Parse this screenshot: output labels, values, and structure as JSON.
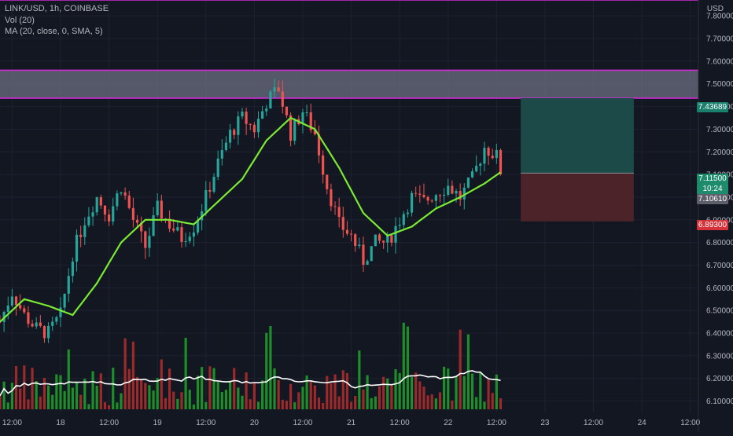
{
  "legend": {
    "symbol": "LINK/USD, 1h, COINBASE",
    "volume": "Vol (20)",
    "ma": "MA (20, close, 0, SMA, 5)"
  },
  "currency_label": "USD",
  "colors": {
    "background": "#131722",
    "up": "#26a69a",
    "down": "#ef5350",
    "vol_up": "#1e8e2a",
    "vol_down": "#9c2a2a",
    "ma_line": "#7bea33",
    "vol_ma": "#ffffff",
    "zone_line": "#d12bd6",
    "zone_fill": "#6b6f80",
    "profit_zone": "#1b4a48",
    "loss_zone": "#4b2329",
    "grid": "#1e2230",
    "axis_text": "#b2b5be"
  },
  "price_tags": {
    "resistance": "7.43689",
    "last_price": "7.11500",
    "countdown": "10:24",
    "entry": "7.10610",
    "stop": "6.89300"
  },
  "chart_data": {
    "type": "candlestick",
    "title": "LINK/USD, 1h, COINBASE",
    "xlabel": "",
    "ylabel": "USD",
    "ylim": [
      6.05,
      7.87
    ],
    "y_ticks": [
      "6.10000",
      "6.20000",
      "6.30000",
      "6.40000",
      "6.50000",
      "6.60000",
      "6.70000",
      "6.80000",
      "6.90000",
      "7.00000",
      "7.10000",
      "7.20000",
      "7.30000",
      "7.40000",
      "7.50000",
      "7.60000",
      "7.70000",
      "7.80000"
    ],
    "x_ticks": [
      "12:00",
      "18",
      "12:00",
      "19",
      "12:00",
      "20",
      "12:00",
      "21",
      "12:00",
      "22",
      "12:00",
      "23",
      "12:00",
      "24",
      "12:00"
    ],
    "x_start": "2020-09-17 09:00",
    "x_end": "2020-09-24 14:00",
    "grid": true,
    "candles_start": "2020-09-17 09:00",
    "candles_end": "2020-09-22 13:00",
    "candle_interval_minutes": 60,
    "candles_shown": "approximately 125 hourly candles; close path estimated from chart",
    "close_path": [
      [
        "2020-09-17 09:00",
        6.45
      ],
      [
        "2020-09-17 12:00",
        6.58
      ],
      [
        "2020-09-17 15:00",
        6.48
      ],
      [
        "2020-09-17 18:00",
        6.42
      ],
      [
        "2020-09-17 21:00",
        6.4
      ],
      [
        "2020-09-18 00:00",
        6.48
      ],
      [
        "2020-09-18 03:00",
        6.75
      ],
      [
        "2020-09-18 06:00",
        6.9
      ],
      [
        "2020-09-18 09:00",
        7.0
      ],
      [
        "2020-09-18 12:00",
        6.92
      ],
      [
        "2020-09-18 15:00",
        7.05
      ],
      [
        "2020-09-18 18:00",
        6.9
      ],
      [
        "2020-09-18 21:00",
        6.78
      ],
      [
        "2020-09-19 00:00",
        6.95
      ],
      [
        "2020-09-19 03:00",
        6.88
      ],
      [
        "2020-09-19 06:00",
        6.82
      ],
      [
        "2020-09-19 09:00",
        6.87
      ],
      [
        "2020-09-19 12:00",
        7.0
      ],
      [
        "2020-09-19 15:00",
        7.15
      ],
      [
        "2020-09-19 18:00",
        7.28
      ],
      [
        "2020-09-19 21:00",
        7.35
      ],
      [
        "2020-09-20 00:00",
        7.3
      ],
      [
        "2020-09-20 03:00",
        7.42
      ],
      [
        "2020-09-20 06:00",
        7.48
      ],
      [
        "2020-09-20 09:00",
        7.28
      ],
      [
        "2020-09-20 12:00",
        7.38
      ],
      [
        "2020-09-20 15:00",
        7.28
      ],
      [
        "2020-09-20 18:00",
        7.05
      ],
      [
        "2020-09-20 21:00",
        6.88
      ],
      [
        "2020-09-21 00:00",
        6.83
      ],
      [
        "2020-09-21 03:00",
        6.72
      ],
      [
        "2020-09-21 06:00",
        6.8
      ],
      [
        "2020-09-21 09:00",
        6.8
      ],
      [
        "2020-09-21 12:00",
        6.9
      ],
      [
        "2020-09-21 15:00",
        7.0
      ],
      [
        "2020-09-21 18:00",
        6.98
      ],
      [
        "2020-09-21 21:00",
        7.02
      ],
      [
        "2020-09-22 00:00",
        7.05
      ],
      [
        "2020-09-22 03:00",
        7.0
      ],
      [
        "2020-09-22 06:00",
        7.08
      ],
      [
        "2020-09-22 09:00",
        7.22
      ],
      [
        "2020-09-22 12:00",
        7.18
      ],
      [
        "2020-09-22 13:00",
        7.115
      ]
    ],
    "ma_path": [
      [
        "2020-09-17 09:00",
        6.45
      ],
      [
        "2020-09-17 15:00",
        6.55
      ],
      [
        "2020-09-17 21:00",
        6.52
      ],
      [
        "2020-09-18 03:00",
        6.48
      ],
      [
        "2020-09-18 09:00",
        6.62
      ],
      [
        "2020-09-18 15:00",
        6.8
      ],
      [
        "2020-09-18 21:00",
        6.9
      ],
      [
        "2020-09-19 03:00",
        6.9
      ],
      [
        "2020-09-19 09:00",
        6.88
      ],
      [
        "2020-09-19 15:00",
        6.98
      ],
      [
        "2020-09-19 21:00",
        7.08
      ],
      [
        "2020-09-20 03:00",
        7.25
      ],
      [
        "2020-09-20 09:00",
        7.35
      ],
      [
        "2020-09-20 15:00",
        7.3
      ],
      [
        "2020-09-20 21:00",
        7.13
      ],
      [
        "2020-09-21 03:00",
        6.93
      ],
      [
        "2020-09-21 09:00",
        6.83
      ],
      [
        "2020-09-21 15:00",
        6.87
      ],
      [
        "2020-09-21 21:00",
        6.95
      ],
      [
        "2020-09-22 03:00",
        7.0
      ],
      [
        "2020-09-22 09:00",
        7.06
      ],
      [
        "2020-09-22 13:00",
        7.11
      ]
    ],
    "annotations": [
      {
        "type": "horizontal_line",
        "value": 7.87,
        "label": ""
      },
      {
        "type": "resistance_zone",
        "from": 7.43689,
        "to": 7.56
      },
      {
        "type": "long_position",
        "entry": 7.1061,
        "target": 7.43689,
        "stop": 6.893,
        "start": "2020-09-22 18:00",
        "end": "2020-09-23 22:00"
      }
    ],
    "volume": {
      "name": "Vol (20)",
      "typical_range_price_units": [
        6.06,
        6.55
      ],
      "note": "volume bars shown in lower pane with white 20-period volume moving average"
    }
  }
}
